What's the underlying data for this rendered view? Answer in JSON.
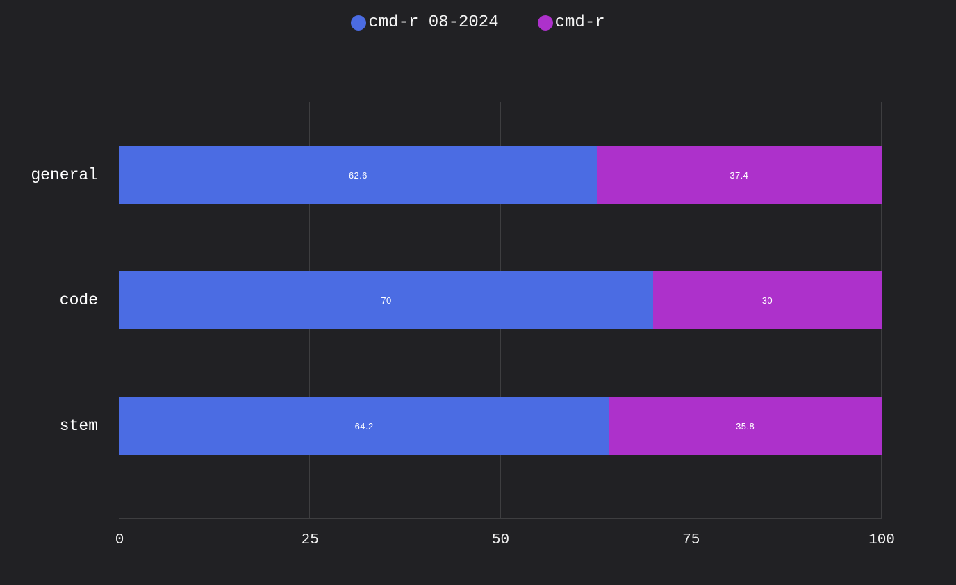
{
  "chart_data": {
    "type": "bar",
    "orientation": "horizontal",
    "stacked": true,
    "title": "",
    "categories": [
      "general",
      "code",
      "stem"
    ],
    "series": [
      {
        "name": "cmd-r 08-2024",
        "color": "#4b6ce3",
        "values": [
          62.6,
          70,
          64.2
        ]
      },
      {
        "name": "cmd-r",
        "color": "#ad31cb",
        "values": [
          37.4,
          30,
          35.8
        ]
      }
    ],
    "xlim": [
      0,
      100
    ],
    "xticks": [
      0,
      25,
      50,
      75,
      100
    ],
    "legend_position": "top",
    "grid": "vertical-only",
    "value_labels": "inside-center"
  },
  "theme": {
    "background": "#212124",
    "grid_color": "#3e3e40",
    "tick_text_color": "#f0f0f0",
    "label_text_color": "#ffffff",
    "legend_text_color": "#f5f5f5",
    "value_label_color": "#ffffff"
  }
}
